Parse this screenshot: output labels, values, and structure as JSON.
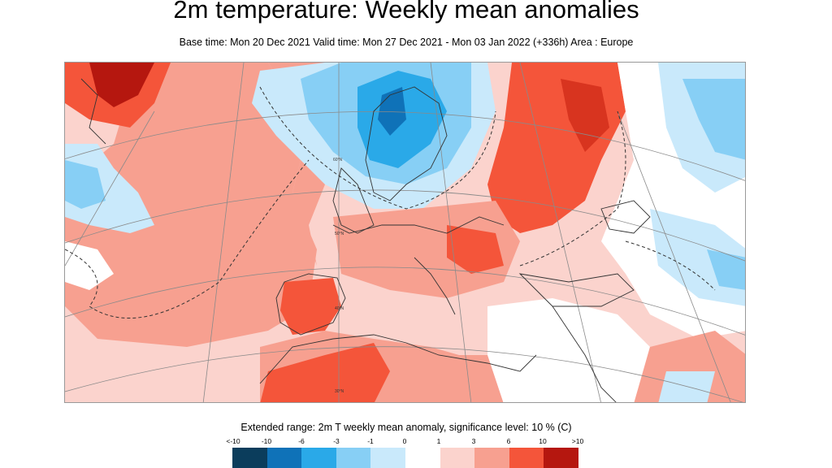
{
  "title": "2m temperature: Weekly mean anomalies",
  "subtitle": "Base time: Mon 20 Dec 2021 Valid time: Mon 27 Dec 2021 - Mon 03 Jan 2022 (+336h) Area : Europe",
  "map": {
    "area": "Europe",
    "variable": "2m temperature weekly mean anomaly",
    "lat_labels": [
      "60°N",
      "50°N",
      "40°N",
      "30°N"
    ]
  },
  "legend": {
    "title": "Extended range: 2m T weekly mean anomaly, significance level: 10 % (C)",
    "ticks": [
      "<-10",
      "-10",
      "-6",
      "-3",
      "-1",
      "0",
      "1",
      "3",
      "6",
      "10",
      ">10"
    ],
    "colors": [
      "#0b3d5c",
      "#0f72b8",
      "#2aa9e8",
      "#87cff5",
      "#c9e9fb",
      "#ffffff",
      "#fbd3cd",
      "#f7a090",
      "#f4553a",
      "#b5170f",
      "#5e0a06"
    ]
  }
}
